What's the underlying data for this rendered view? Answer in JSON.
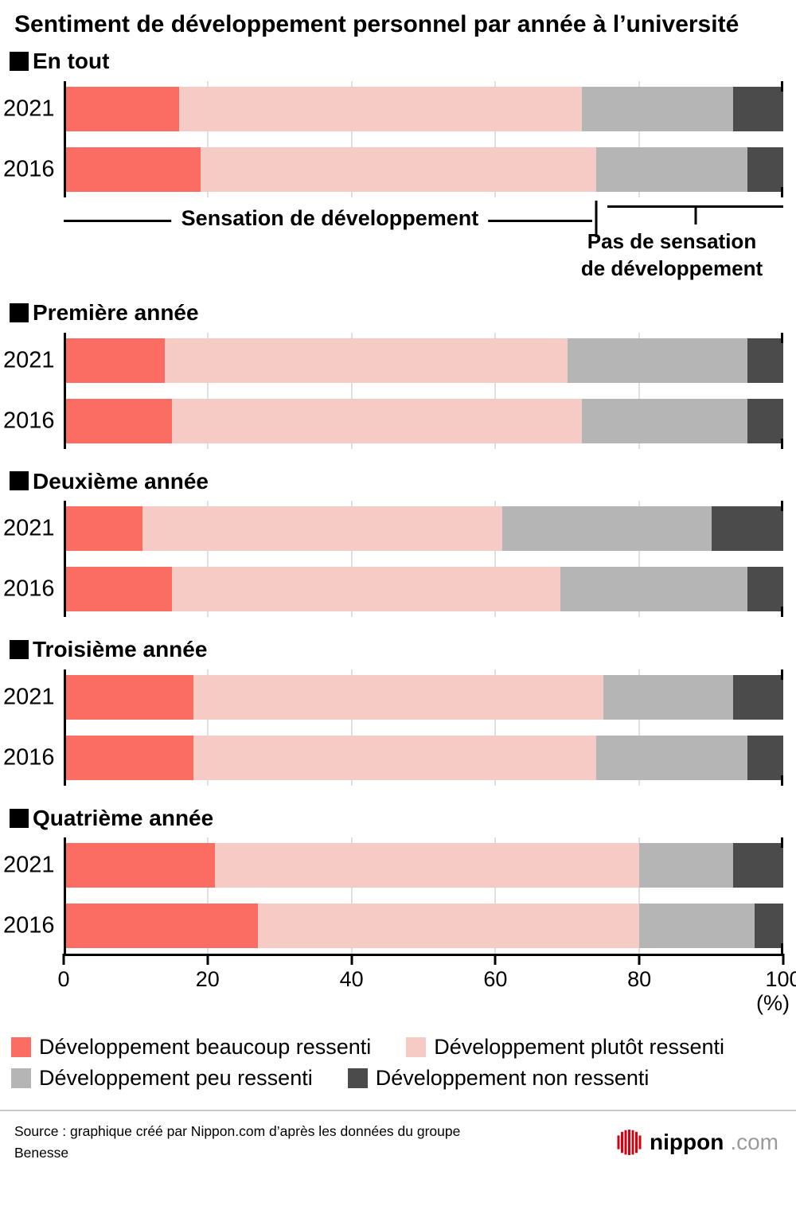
{
  "title": "Sentiment de développement personnel par année à l’université",
  "chart_data": {
    "type": "bar",
    "stacked": true,
    "orientation": "horizontal",
    "x_axis": {
      "min": 0,
      "max": 100,
      "ticks": [
        0,
        20,
        40,
        60,
        80,
        100
      ],
      "gridlines": [
        20,
        40,
        60,
        80
      ],
      "unit_label": "(%)"
    },
    "series": [
      {
        "name": "Développement beaucoup ressenti",
        "color": "#fb6d62"
      },
      {
        "name": "Développement plutôt ressenti",
        "color": "#f6cac5"
      },
      {
        "name": "Développement peu ressenti",
        "color": "#b5b5b5"
      },
      {
        "name": "Développement non ressenti",
        "color": "#4b4b4b"
      }
    ],
    "groups": [
      {
        "label": "En tout",
        "rows": [
          {
            "year": "2021",
            "values": [
              16,
              56,
              21,
              7
            ]
          },
          {
            "year": "2016",
            "values": [
              19,
              55,
              21,
              5
            ]
          }
        ],
        "annotation": {
          "left_label": "Sensation de développement",
          "right_label_lines": [
            "Pas de sensation",
            "de développement"
          ],
          "split_pct": 74
        }
      },
      {
        "label": "Première année",
        "rows": [
          {
            "year": "2021",
            "values": [
              14,
              56,
              25,
              5
            ]
          },
          {
            "year": "2016",
            "values": [
              15,
              57,
              23,
              5
            ]
          }
        ]
      },
      {
        "label": "Deuxième année",
        "rows": [
          {
            "year": "2021",
            "values": [
              11,
              50,
              29,
              10
            ]
          },
          {
            "year": "2016",
            "values": [
              15,
              54,
              26,
              5
            ]
          }
        ]
      },
      {
        "label": "Troisième année",
        "rows": [
          {
            "year": "2021",
            "values": [
              18,
              57,
              18,
              7
            ]
          },
          {
            "year": "2016",
            "values": [
              18,
              56,
              21,
              5
            ]
          }
        ]
      },
      {
        "label": "Quatrième année",
        "rows": [
          {
            "year": "2021",
            "values": [
              21,
              59,
              13,
              7
            ]
          },
          {
            "year": "2016",
            "values": [
              27,
              53,
              16,
              4
            ]
          }
        ]
      }
    ]
  },
  "source": "Source : graphique créé par Nippon.com d’après les données du groupe Benesse",
  "logo": {
    "name": "nippon",
    "suffix": ".com",
    "color": "#d7000f"
  }
}
